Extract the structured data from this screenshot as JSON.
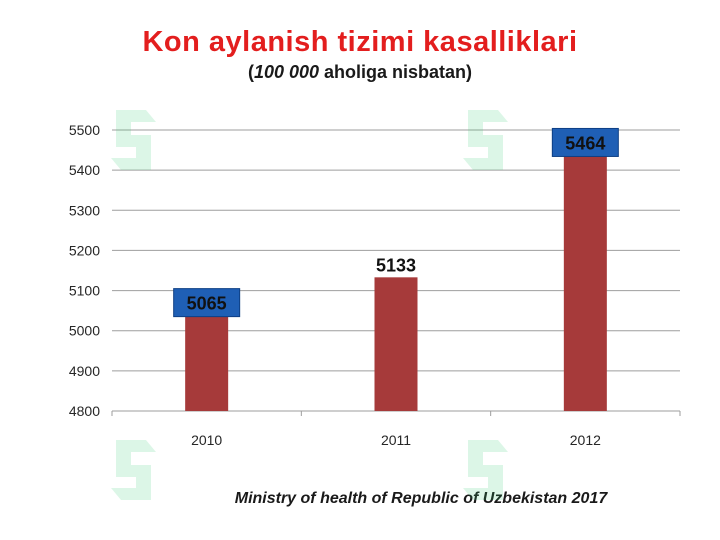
{
  "title": "Kon aylanish tizimi kasalliklari",
  "subtitle": {
    "open": "(",
    "emphasis": "100 000",
    "rest": " aholiga nisbatan)"
  },
  "source": "Ministry of health of Republic of Uzbekistan 2017",
  "colors": {
    "title": "#e31e1e",
    "bar": "#a63a3a",
    "label_box": "#1f5fb5",
    "grid": "#9e9e9e"
  },
  "chart_data": {
    "type": "bar",
    "categories": [
      "2010",
      "2011",
      "2012"
    ],
    "values": [
      5065,
      5133,
      5464
    ],
    "ylim": [
      4800,
      5500
    ],
    "yticks": [
      4800,
      4900,
      5000,
      5100,
      5200,
      5300,
      5400,
      5500
    ],
    "data_labels": [
      "5065",
      "5133",
      "5464"
    ],
    "label_boxed": [
      true,
      false,
      true
    ],
    "grid": true,
    "xlabel": "",
    "ylabel": ""
  }
}
